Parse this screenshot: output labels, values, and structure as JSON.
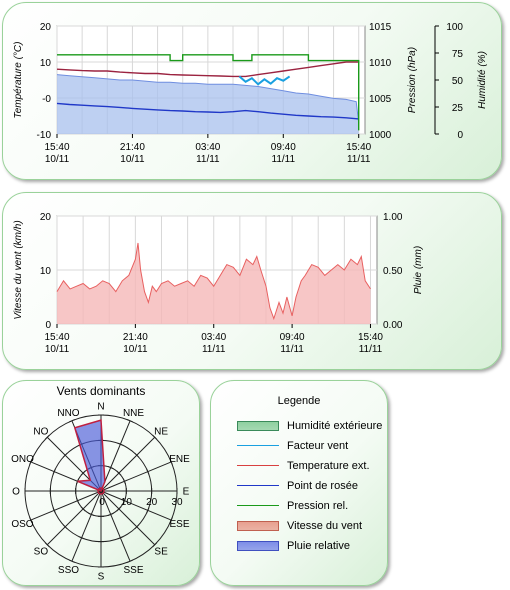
{
  "colors": {
    "humidity": "#6f8ee0",
    "humidity_fill": "#a8c0ee",
    "temperature": "#9b2340",
    "dewpoint": "#2038c8",
    "pressure": "#1a9a1a",
    "windchill": "#1aa0e0",
    "wind": "#e86060",
    "wind_fill": "#f5b8b8",
    "rose": "#4a5ad8"
  },
  "chart_data": [
    {
      "type": "line",
      "x_ticks": [
        "15:40",
        "21:40",
        "03:40",
        "09:40",
        "15:40"
      ],
      "x_dates": [
        "10/11",
        "10/11",
        "11/11",
        "11/11",
        "11/11"
      ],
      "axes": {
        "temperature": {
          "label": "Température (°C)",
          "range": [
            -10,
            20
          ],
          "ticks": [
            "20",
            "10",
            "-0",
            "-10"
          ]
        },
        "pressure": {
          "label": "Pression (hPa)",
          "range": [
            1000,
            1015
          ],
          "ticks": [
            "1015",
            "1010",
            "1005",
            "1000"
          ]
        },
        "humidity": {
          "label": "Humidité (%)",
          "range": [
            0,
            100
          ],
          "ticks": [
            "100",
            "75",
            "50",
            "25",
            "0"
          ]
        }
      },
      "x_range_hours": [
        0,
        24.5
      ],
      "series": [
        {
          "key": "humidity",
          "axis": "humidity",
          "points": [
            [
              0,
              55
            ],
            [
              1,
              54
            ],
            [
              2,
              53
            ],
            [
              3,
              52
            ],
            [
              4,
              51
            ],
            [
              5,
              50
            ],
            [
              6,
              50
            ],
            [
              7,
              49
            ],
            [
              8,
              48
            ],
            [
              9,
              48
            ],
            [
              10,
              47
            ],
            [
              11,
              47
            ],
            [
              12,
              46
            ],
            [
              13,
              46
            ],
            [
              14,
              46
            ],
            [
              15,
              45
            ],
            [
              16,
              44
            ],
            [
              17,
              42
            ],
            [
              18,
              40
            ],
            [
              19,
              38
            ],
            [
              20,
              37
            ],
            [
              21,
              35
            ],
            [
              22,
              33
            ],
            [
              23,
              32
            ],
            [
              23.8,
              30
            ],
            [
              24,
              10
            ]
          ]
        },
        {
          "key": "temperature",
          "axis": "temperature",
          "points": [
            [
              0,
              8
            ],
            [
              1,
              7.8
            ],
            [
              2,
              7.6
            ],
            [
              3,
              7.5
            ],
            [
              4,
              7.5
            ],
            [
              5,
              7.2
            ],
            [
              6,
              7.0
            ],
            [
              7,
              6.8
            ],
            [
              8,
              6.8
            ],
            [
              9,
              6.5
            ],
            [
              10,
              6.4
            ],
            [
              11,
              6.3
            ],
            [
              12,
              6.2
            ],
            [
              13,
              6.1
            ],
            [
              14,
              6.0
            ],
            [
              15,
              6.0
            ],
            [
              16,
              6.5
            ],
            [
              17,
              7.0
            ],
            [
              18,
              7.5
            ],
            [
              19,
              8.0
            ],
            [
              20,
              8.5
            ],
            [
              21,
              9.0
            ],
            [
              22,
              9.5
            ],
            [
              23,
              10.0
            ],
            [
              24,
              10.0
            ]
          ]
        },
        {
          "key": "windchill",
          "axis": "temperature",
          "points": [
            [
              14.5,
              6
            ],
            [
              15,
              4.5
            ],
            [
              15.5,
              5.5
            ],
            [
              16,
              3.8
            ],
            [
              16.5,
              5.2
            ],
            [
              17,
              4.0
            ],
            [
              17.5,
              5.5
            ],
            [
              18,
              4.8
            ],
            [
              18.5,
              6
            ]
          ]
        },
        {
          "key": "dewpoint",
          "axis": "temperature",
          "points": [
            [
              0,
              -1.5
            ],
            [
              1,
              -1.8
            ],
            [
              2,
              -2.0
            ],
            [
              3,
              -2.2
            ],
            [
              4,
              -2.4
            ],
            [
              5,
              -2.6
            ],
            [
              6,
              -2.9
            ],
            [
              7,
              -3.1
            ],
            [
              8,
              -3.3
            ],
            [
              9,
              -3.5
            ],
            [
              10,
              -3.6
            ],
            [
              11,
              -3.8
            ],
            [
              12,
              -3.9
            ],
            [
              13,
              -4.0
            ],
            [
              14,
              -3.8
            ],
            [
              15,
              -3.5
            ],
            [
              16,
              -3.8
            ],
            [
              17,
              -4.2
            ],
            [
              18,
              -4.5
            ],
            [
              19,
              -4.8
            ],
            [
              20,
              -5.0
            ],
            [
              21,
              -5.2
            ],
            [
              22,
              -5.3
            ],
            [
              23,
              -5.5
            ],
            [
              24,
              -5.8
            ]
          ]
        },
        {
          "key": "pressure",
          "axis": "pressure",
          "points": [
            [
              0,
              1011
            ],
            [
              9,
              1011
            ],
            [
              9,
              1010.2
            ],
            [
              10,
              1010.2
            ],
            [
              10,
              1011
            ],
            [
              14,
              1011
            ],
            [
              14,
              1010.2
            ],
            [
              15.5,
              1010.2
            ],
            [
              15.5,
              1011
            ],
            [
              20,
              1011
            ],
            [
              20,
              1010.2
            ],
            [
              24,
              1010.2
            ],
            [
              24,
              1000.5
            ]
          ]
        }
      ]
    },
    {
      "type": "area",
      "x_ticks": [
        "15:40",
        "21:40",
        "03:40",
        "09:40",
        "15:40"
      ],
      "x_dates": [
        "10/11",
        "10/11",
        "11/11",
        "11/11",
        "11/11"
      ],
      "axes": {
        "wind": {
          "label": "Vitesse du vent (km/h)",
          "range": [
            0,
            20
          ],
          "ticks": [
            "20",
            "10",
            "0"
          ]
        },
        "rain": {
          "label": "Pluie (mm)",
          "range": [
            0,
            1
          ],
          "ticks": [
            "1.00",
            "0.50",
            "0.00"
          ]
        }
      },
      "x_range_hours": [
        0,
        24.5
      ],
      "series": [
        {
          "key": "wind",
          "axis": "wind",
          "points": [
            [
              0,
              6
            ],
            [
              0.5,
              8
            ],
            [
              1,
              6.5
            ],
            [
              1.5,
              7
            ],
            [
              2,
              7.5
            ],
            [
              2.5,
              6.5
            ],
            [
              3,
              7
            ],
            [
              3.5,
              8
            ],
            [
              4,
              7.5
            ],
            [
              4.5,
              6
            ],
            [
              5,
              8
            ],
            [
              5.5,
              9
            ],
            [
              6,
              12
            ],
            [
              6.2,
              15
            ],
            [
              6.4,
              10
            ],
            [
              6.7,
              6
            ],
            [
              7,
              4
            ],
            [
              7.3,
              7
            ],
            [
              7.6,
              6
            ],
            [
              8,
              7.5
            ],
            [
              8.5,
              8
            ],
            [
              9,
              7
            ],
            [
              9.5,
              7.5
            ],
            [
              10,
              8
            ],
            [
              10.5,
              7
            ],
            [
              11,
              9
            ],
            [
              11.5,
              8.5
            ],
            [
              12,
              7
            ],
            [
              12.5,
              9
            ],
            [
              13,
              11
            ],
            [
              13.5,
              10.5
            ],
            [
              14,
              9
            ],
            [
              14.5,
              12
            ],
            [
              15,
              11
            ],
            [
              15.3,
              12.5
            ],
            [
              15.6,
              10
            ],
            [
              16,
              7
            ],
            [
              16.3,
              3
            ],
            [
              16.6,
              1
            ],
            [
              17,
              4
            ],
            [
              17.3,
              2
            ],
            [
              17.6,
              5
            ],
            [
              18,
              1.5
            ],
            [
              18.3,
              5
            ],
            [
              18.7,
              8
            ],
            [
              19,
              9
            ],
            [
              19.5,
              11
            ],
            [
              20,
              10.5
            ],
            [
              20.5,
              9
            ],
            [
              21,
              10
            ],
            [
              21.5,
              11
            ],
            [
              22,
              10
            ],
            [
              22.5,
              12
            ],
            [
              23,
              11
            ],
            [
              23.3,
              12.5
            ],
            [
              23.6,
              8
            ],
            [
              24,
              6.5
            ]
          ]
        }
      ]
    },
    {
      "type": "radar",
      "title": "Vents dominants",
      "directions": [
        "N",
        "NNE",
        "NE",
        "ENE",
        "E",
        "ESE",
        "SE",
        "SSE",
        "S",
        "SSO",
        "SO",
        "OSO",
        "O",
        "ONO",
        "NO",
        "NNO"
      ],
      "values": [
        28,
        4,
        0,
        0,
        0,
        0,
        0,
        0,
        0,
        0,
        0,
        0,
        0,
        10,
        6,
        27
      ],
      "rings": [
        10,
        20,
        30
      ],
      "ring_labels": [
        "10",
        "20",
        "30"
      ],
      "center_label": "0",
      "max": 30
    }
  ],
  "legend": {
    "title": "Legende",
    "items": [
      {
        "label": "Humidité extérieure",
        "kind": "fill",
        "fill": "#8fd0a0",
        "stroke": "#3a8a5a"
      },
      {
        "label": "Facteur vent",
        "kind": "line",
        "stroke": "#1aa0e0"
      },
      {
        "label": "Temperature ext.",
        "kind": "line",
        "stroke": "#d84040"
      },
      {
        "label": "Point de rosée",
        "kind": "line",
        "stroke": "#2038c8"
      },
      {
        "label": "Pression rel.",
        "kind": "line",
        "stroke": "#1a9a1a"
      },
      {
        "label": "Vitesse du vent",
        "kind": "fill",
        "fill": "#e8a090",
        "stroke": "#c06050"
      },
      {
        "label": "Pluie relative",
        "kind": "fill",
        "fill": "#7e8ee8",
        "stroke": "#4050c0"
      }
    ]
  }
}
